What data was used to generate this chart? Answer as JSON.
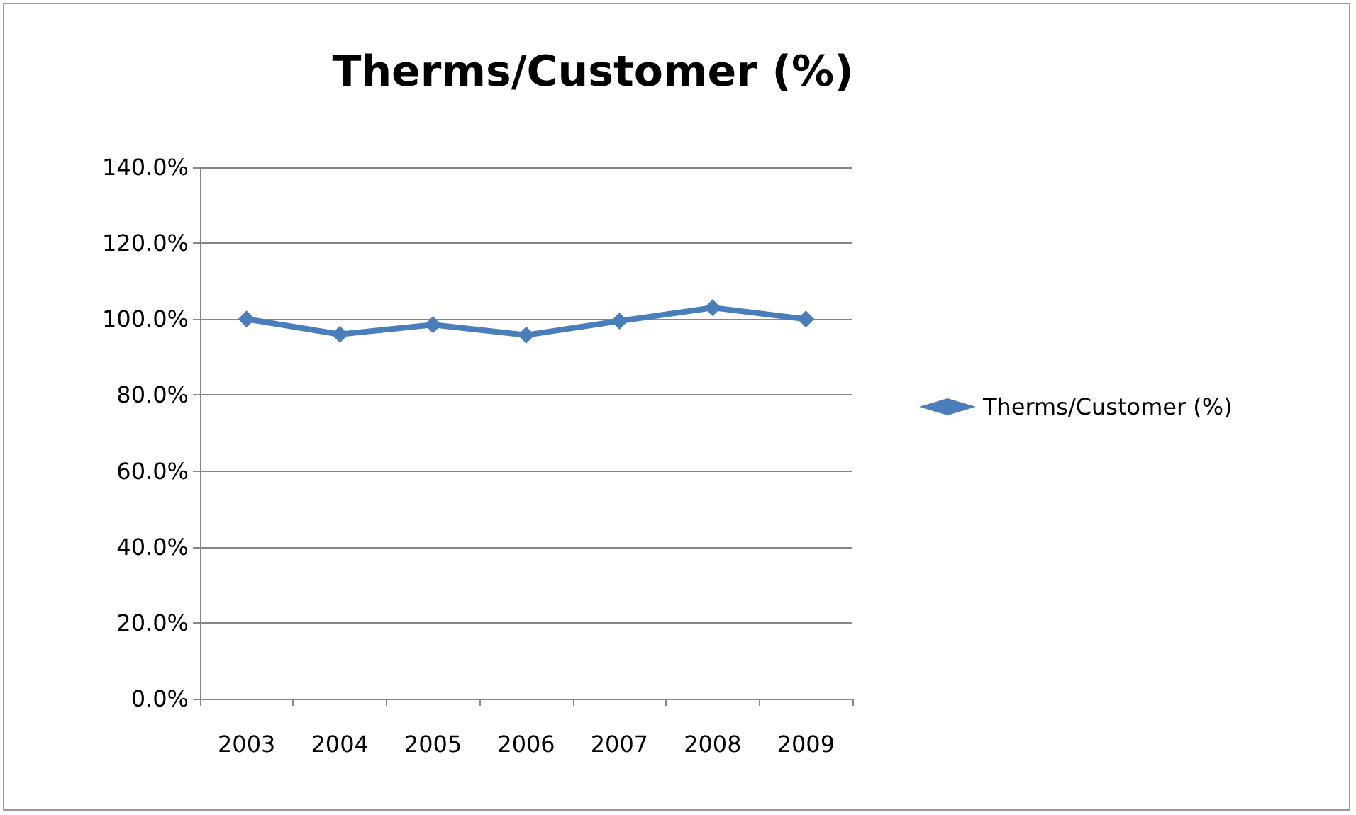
{
  "chart_data": {
    "type": "line",
    "title": "Therms/Customer (%)",
    "categories": [
      "2003",
      "2004",
      "2005",
      "2006",
      "2007",
      "2008",
      "2009"
    ],
    "series": [
      {
        "name": "Therms/Customer (%)",
        "color": "#4a7ebb",
        "values": [
          100,
          96,
          98.5,
          95.8,
          99.5,
          103,
          100
        ]
      }
    ],
    "ylim": [
      0,
      140
    ],
    "yticks": [
      {
        "value": 0,
        "label": "0.0%"
      },
      {
        "value": 20,
        "label": "20.0%"
      },
      {
        "value": 40,
        "label": "40.0%"
      },
      {
        "value": 60,
        "label": "60.0%"
      },
      {
        "value": 80,
        "label": "80.0%"
      },
      {
        "value": 100,
        "label": "100.0%"
      },
      {
        "value": 120,
        "label": "120.0%"
      },
      {
        "value": 140,
        "label": "140.0%"
      }
    ],
    "grid": "y",
    "legend": "right",
    "marker": "diamond",
    "line_style": "solid"
  }
}
